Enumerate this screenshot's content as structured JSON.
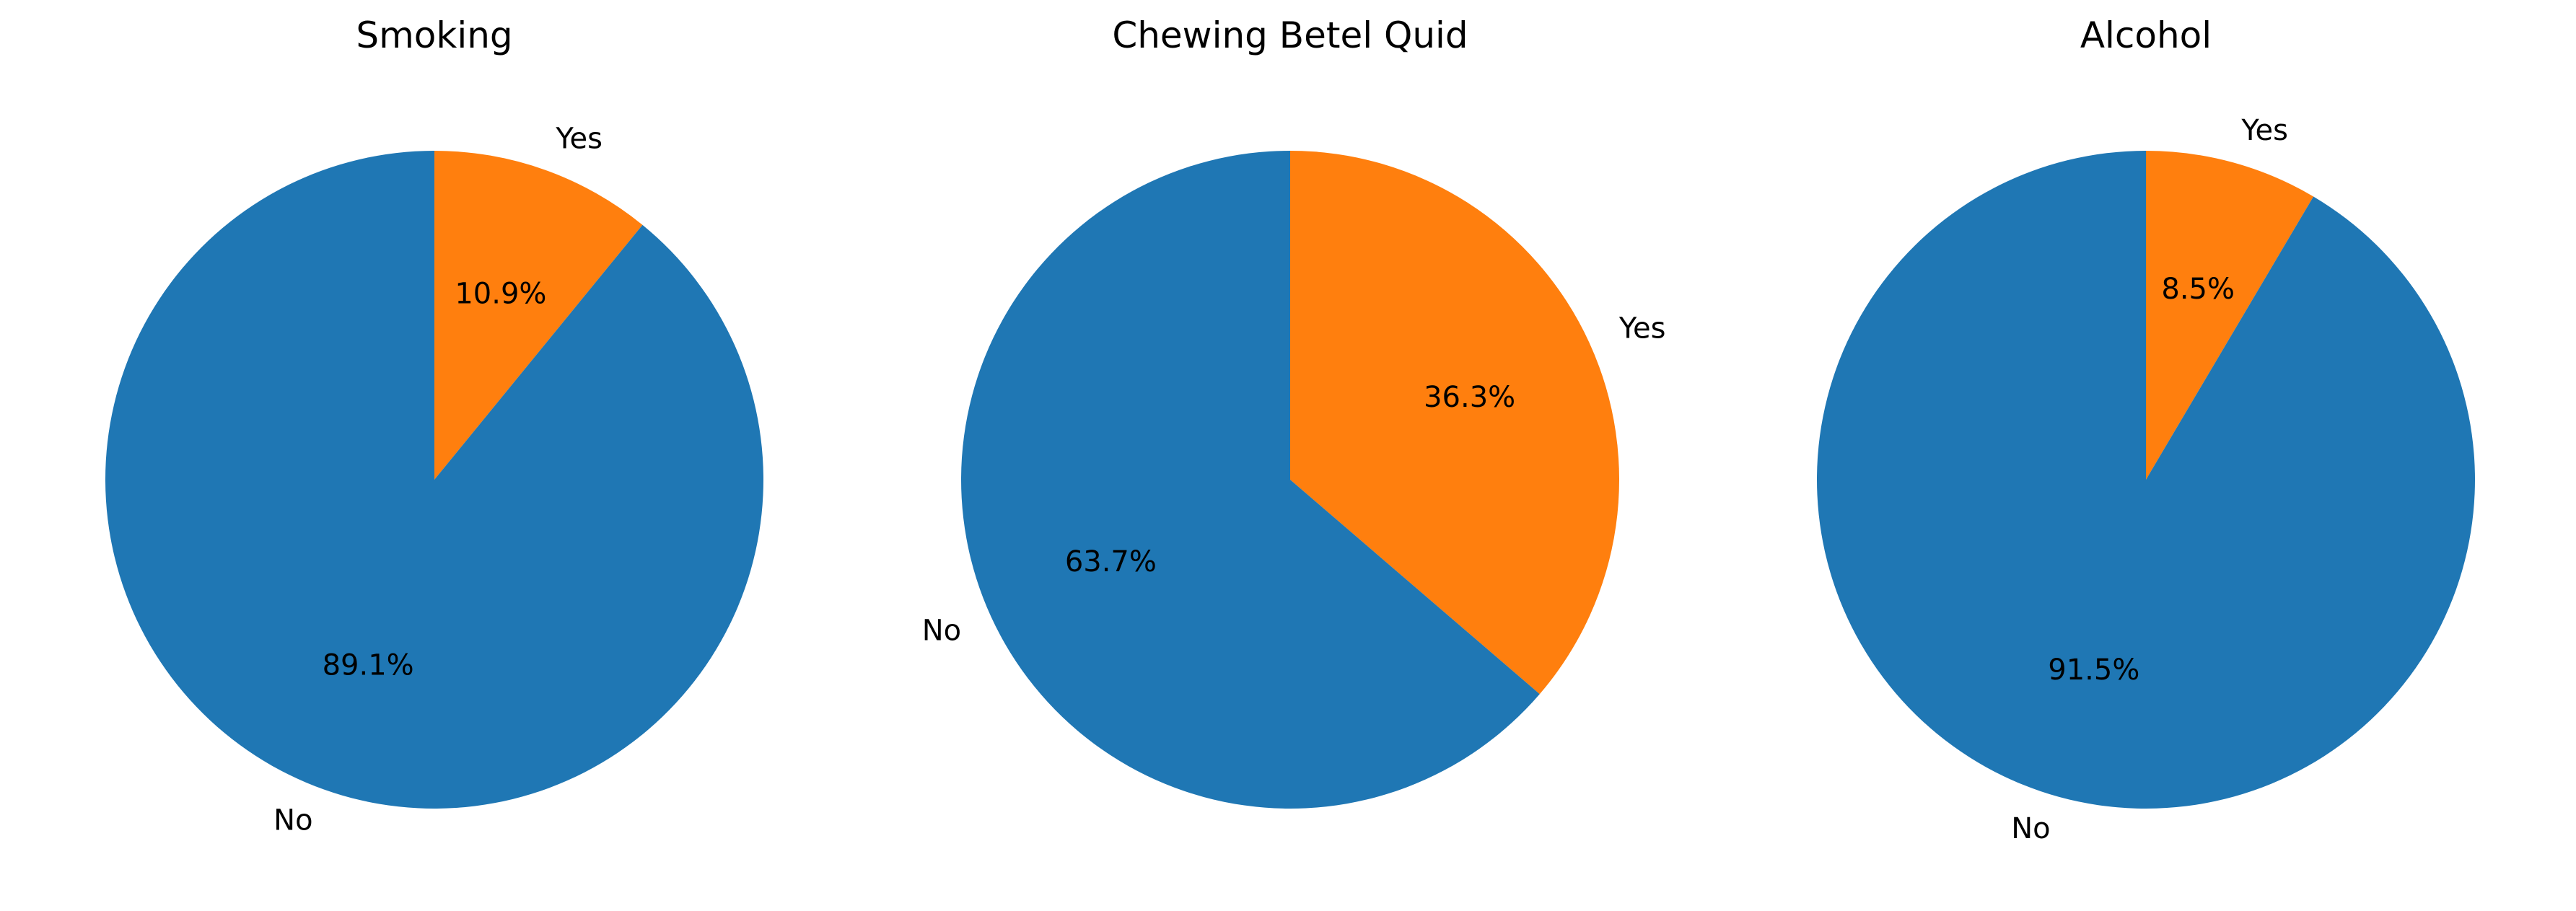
{
  "colors": {
    "No": "#1f77b4",
    "Yes": "#ff7f0e"
  },
  "chart_data": [
    {
      "type": "pie",
      "title": "Smoking",
      "categories": [
        "Yes",
        "No"
      ],
      "values": [
        10.9,
        89.1
      ],
      "value_labels": [
        "10.9%",
        "89.1%"
      ],
      "start_angle_deg": 90,
      "direction": "clockwise"
    },
    {
      "type": "pie",
      "title": "Chewing Betel Quid",
      "categories": [
        "Yes",
        "No"
      ],
      "values": [
        36.3,
        63.7
      ],
      "value_labels": [
        "36.3%",
        "63.7%"
      ],
      "start_angle_deg": 90,
      "direction": "clockwise"
    },
    {
      "type": "pie",
      "title": "Alcohol",
      "categories": [
        "Yes",
        "No"
      ],
      "values": [
        8.5,
        91.5
      ],
      "value_labels": [
        "8.5%",
        "91.5%"
      ],
      "start_angle_deg": 90,
      "direction": "clockwise"
    }
  ]
}
